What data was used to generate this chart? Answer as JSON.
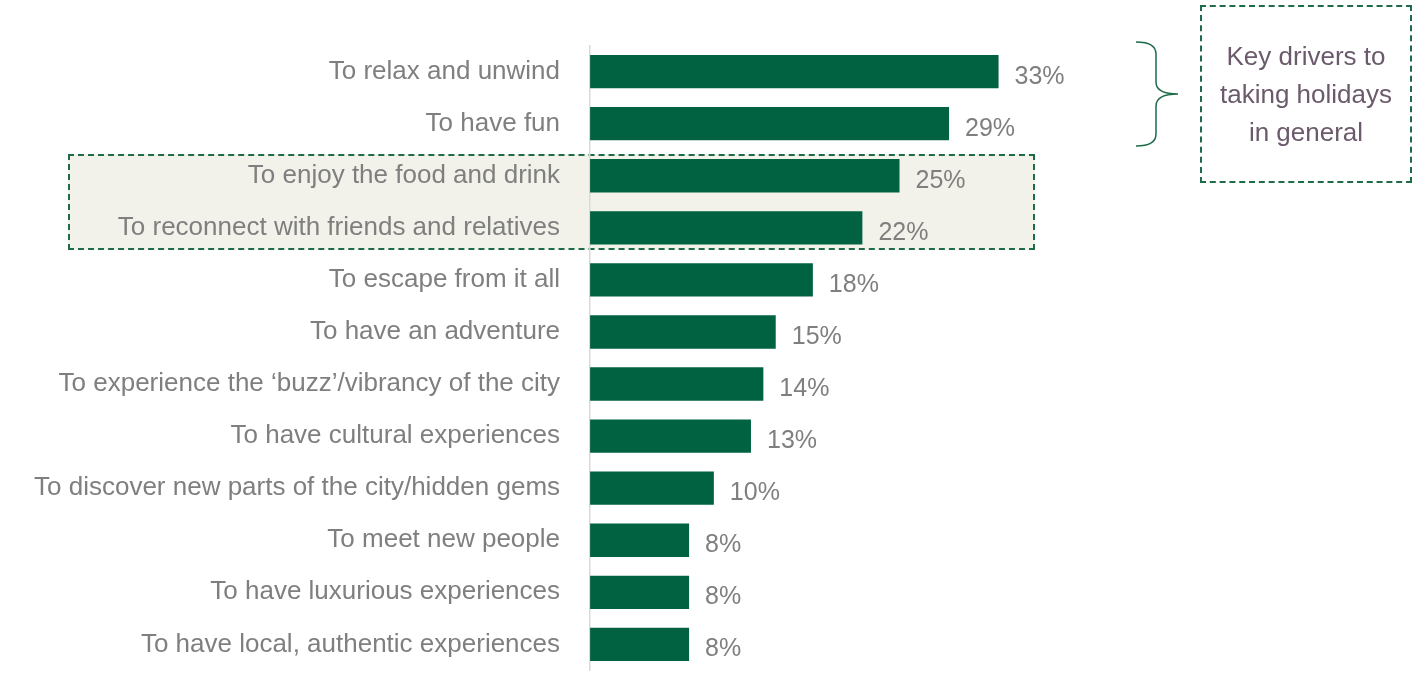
{
  "chart_data": {
    "type": "bar",
    "orientation": "horizontal",
    "categories": [
      "To relax and unwind",
      "To have fun",
      "To enjoy the food and drink",
      "To reconnect with friends and relatives",
      "To escape from it all",
      "To have an adventure",
      "To experience the ‘buzz’/vibrancy of the city",
      "To have cultural experiences",
      "To discover new parts of the city/hidden gems",
      "To meet new people",
      "To have luxurious experiences",
      "To have local, authentic experiences"
    ],
    "values": [
      33,
      29,
      25,
      22,
      18,
      15,
      14,
      13,
      10,
      8,
      8,
      8
    ],
    "color": "#006241",
    "value_labels": [
      "33%",
      "29%",
      "25%",
      "22%",
      "18%",
      "15%",
      "14%",
      "13%",
      "10%",
      "8%",
      "8%",
      "8%"
    ],
    "annotations": [
      "Key drivers to taking holidays in general"
    ],
    "legend": false
  }
}
